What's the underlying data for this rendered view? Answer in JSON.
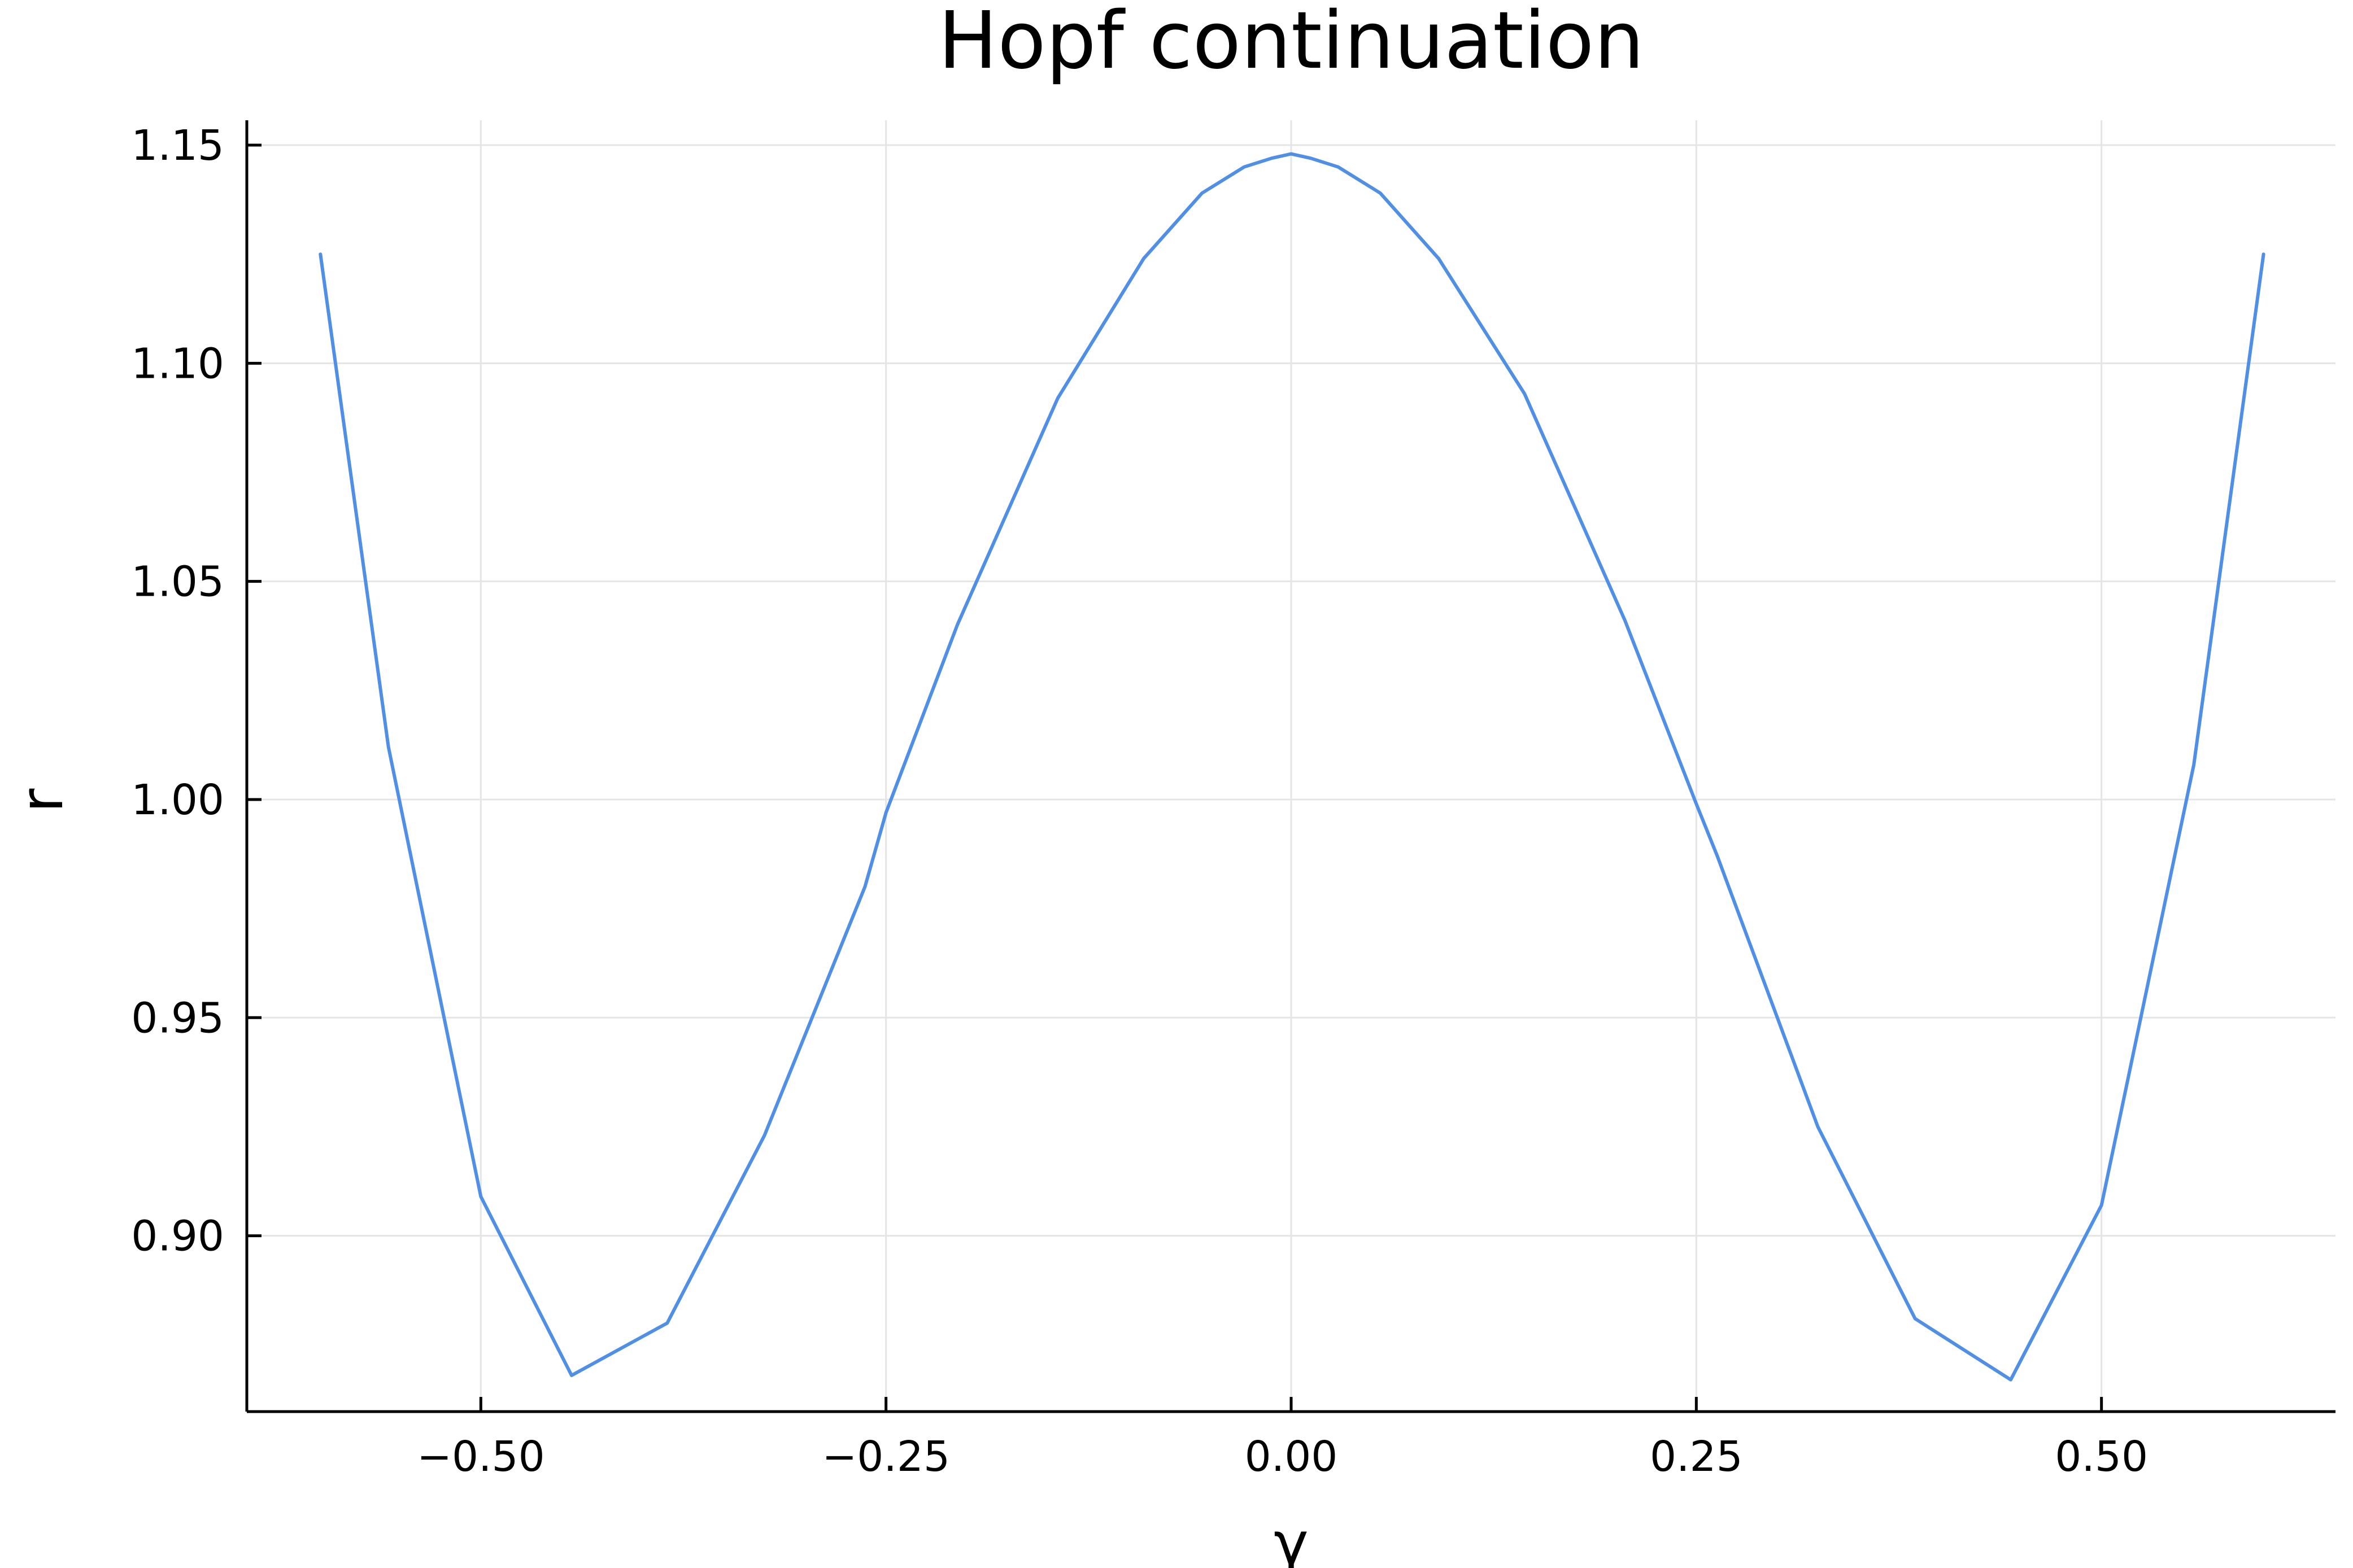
{
  "chart_data": {
    "type": "line",
    "title": "Hopf continuation",
    "xlabel": "γ",
    "ylabel": "r",
    "xlim": [
      -0.6444,
      0.6444
    ],
    "ylim": [
      0.8597,
      1.1557
    ],
    "grid": true,
    "legend": "none",
    "x_ticks": [
      {
        "value": -0.5,
        "label": "−0.50"
      },
      {
        "value": -0.25,
        "label": "−0.25"
      },
      {
        "value": 0.0,
        "label": "0.00"
      },
      {
        "value": 0.25,
        "label": "0.25"
      },
      {
        "value": 0.5,
        "label": "0.50"
      }
    ],
    "y_ticks": [
      {
        "value": 0.9,
        "label": "0.90"
      },
      {
        "value": 0.95,
        "label": "0.95"
      },
      {
        "value": 1.0,
        "label": "1.00"
      },
      {
        "value": 1.05,
        "label": "1.05"
      },
      {
        "value": 1.1,
        "label": "1.10"
      },
      {
        "value": 1.15,
        "label": "1.15"
      }
    ],
    "series": [
      {
        "color": "#4f8fe6",
        "x": [
          -0.599,
          -0.557,
          -0.5,
          -0.444,
          -0.385,
          -0.325,
          -0.263,
          -0.25,
          -0.206,
          -0.144,
          -0.091,
          -0.055,
          -0.029,
          -0.012,
          0.0,
          0.012,
          0.029,
          0.055,
          0.091,
          0.144,
          0.206,
          0.25,
          0.263,
          0.325,
          0.385,
          0.444,
          0.5,
          0.557,
          0.6
        ],
        "y": [
          1.125,
          1.012,
          0.909,
          0.868,
          0.88,
          0.923,
          0.98,
          0.997,
          1.04,
          1.092,
          1.124,
          1.139,
          1.145,
          1.147,
          1.148,
          1.147,
          1.145,
          1.139,
          1.124,
          1.093,
          1.041,
          0.999,
          0.987,
          0.925,
          0.881,
          0.867,
          0.907,
          1.008,
          1.125
        ]
      }
    ]
  }
}
